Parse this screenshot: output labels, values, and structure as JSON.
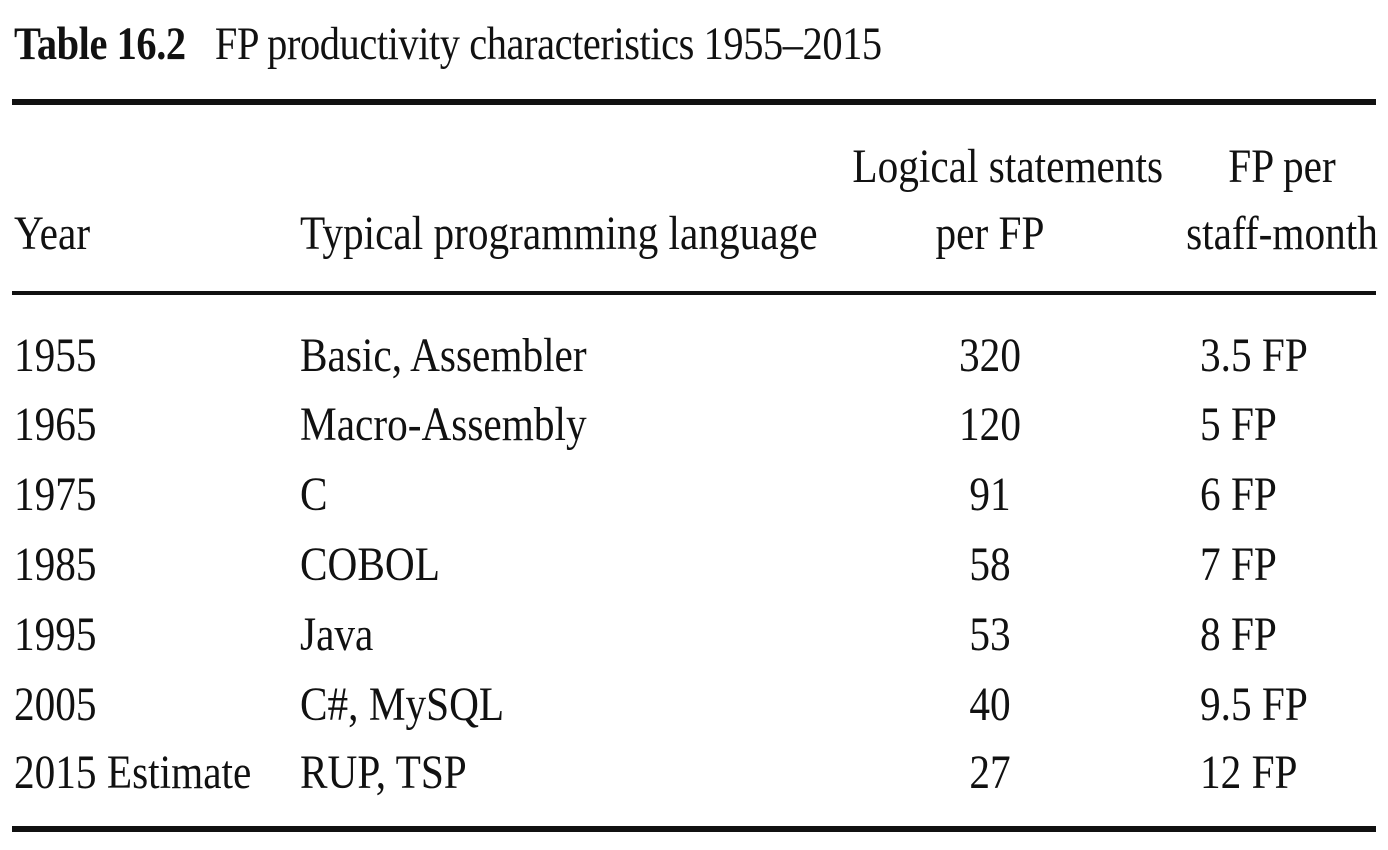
{
  "table": {
    "caption_label": "Table 16.2",
    "caption_title": "FP productivity characteristics 1955–2015",
    "columns": {
      "year": "Year",
      "language": "Typical programming language",
      "statements_line1": "Logical statements",
      "statements_line2": "per FP",
      "fp_line1": "FP per",
      "fp_line2": "staff-month"
    },
    "rows": [
      {
        "year": "1955",
        "language": "Basic, Assembler",
        "statements": "320",
        "fp": "3.5 FP"
      },
      {
        "year": "1965",
        "language": "Macro-Assembly",
        "statements": "120",
        "fp": "5 FP"
      },
      {
        "year": "1975",
        "language": "C",
        "statements": "91",
        "fp": "6 FP"
      },
      {
        "year": "1985",
        "language": "COBOL",
        "statements": "58",
        "fp": "7 FP"
      },
      {
        "year": "1995",
        "language": "Java",
        "statements": "53",
        "fp": "8 FP"
      },
      {
        "year": "2005",
        "language": "C#, MySQL",
        "statements": "40",
        "fp": "9.5 FP"
      },
      {
        "year": "2015 Estimate",
        "language": "RUP, TSP",
        "statements": "27",
        "fp": "12 FP"
      }
    ]
  }
}
